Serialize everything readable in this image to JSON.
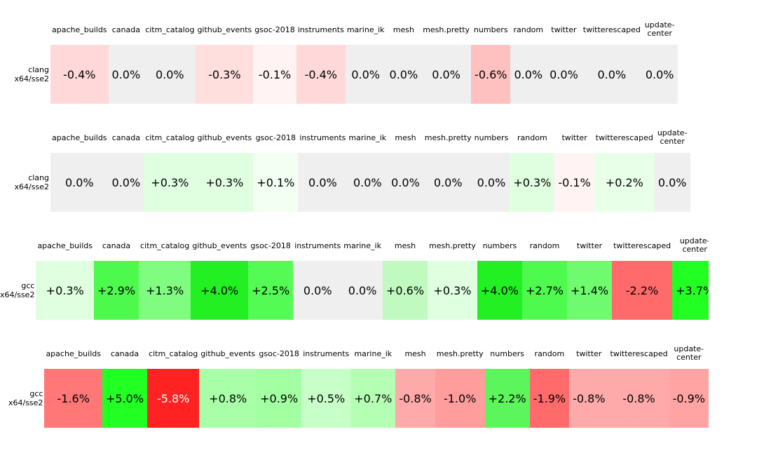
{
  "rows": [
    {
      "label": "clang x64/sse2",
      "columns": [
        "apache_builds",
        "canada",
        "citm_catalog",
        "github_events",
        "gsoc-2018",
        "instruments",
        "marine_ik",
        "mesh",
        "mesh.pretty",
        "numbers",
        "random",
        "twitter",
        "twitterescaped",
        "update-center"
      ],
      "cells": [
        {
          "text": "-0.4%",
          "color": "#ffd9d9"
        },
        {
          "text": "0.0%",
          "color": "#efefef"
        },
        {
          "text": "0.0%",
          "color": "#efefef"
        },
        {
          "text": "-0.3%",
          "color": "#ffdede"
        },
        {
          "text": "-0.1%",
          "color": "#fff3f3"
        },
        {
          "text": "-0.4%",
          "color": "#ffd9d9"
        },
        {
          "text": "0.0%",
          "color": "#efefef"
        },
        {
          "text": "0.0%",
          "color": "#efefef"
        },
        {
          "text": "0.0%",
          "color": "#efefef"
        },
        {
          "text": "-0.6%",
          "color": "#ffc0c0"
        },
        {
          "text": "0.0%",
          "color": "#efefef"
        },
        {
          "text": "0.0%",
          "color": "#efefef"
        },
        {
          "text": "0.0%",
          "color": "#efefef"
        },
        {
          "text": "0.0%",
          "color": "#efefef"
        }
      ]
    },
    {
      "label": "clang x64/sse2",
      "columns": [
        "apache_builds",
        "canada",
        "citm_catalog",
        "github_events",
        "gsoc-2018",
        "instruments",
        "marine_ik",
        "mesh",
        "mesh.pretty",
        "numbers",
        "random",
        "twitter",
        "twitterescaped",
        "update-center"
      ],
      "cells": [
        {
          "text": "0.0%",
          "color": "#efefef"
        },
        {
          "text": "0.0%",
          "color": "#efefef"
        },
        {
          "text": "+0.3%",
          "color": "#e0ffe0"
        },
        {
          "text": "+0.3%",
          "color": "#e0ffe0"
        },
        {
          "text": "+0.1%",
          "color": "#f3fff3"
        },
        {
          "text": "0.0%",
          "color": "#efefef"
        },
        {
          "text": "0.0%",
          "color": "#efefef"
        },
        {
          "text": "0.0%",
          "color": "#efefef"
        },
        {
          "text": "0.0%",
          "color": "#efefef"
        },
        {
          "text": "0.0%",
          "color": "#efefef"
        },
        {
          "text": "+0.3%",
          "color": "#e0ffe0"
        },
        {
          "text": "-0.1%",
          "color": "#fff3f3"
        },
        {
          "text": "+0.2%",
          "color": "#e8ffe8"
        },
        {
          "text": "0.0%",
          "color": "#efefef"
        }
      ]
    },
    {
      "label": "gcc x64/sse2",
      "columns": [
        "apache_builds",
        "canada",
        "citm_catalog",
        "github_events",
        "gsoc-2018",
        "instruments",
        "marine_ik",
        "mesh",
        "mesh.pretty",
        "numbers",
        "random",
        "twitter",
        "twitterescaped",
        "update-center"
      ],
      "cells": [
        {
          "text": "+0.3%",
          "color": "#e0ffe0"
        },
        {
          "text": "+2.9%",
          "color": "#4ef94e"
        },
        {
          "text": "+1.3%",
          "color": "#80fc80"
        },
        {
          "text": "+4.0%",
          "color": "#22f022"
        },
        {
          "text": "+2.5%",
          "color": "#55fb55"
        },
        {
          "text": "0.0%",
          "color": "#efefef"
        },
        {
          "text": "0.0%",
          "color": "#efefef"
        },
        {
          "text": "+0.6%",
          "color": "#c0fac0"
        },
        {
          "text": "+0.3%",
          "color": "#e0ffe0"
        },
        {
          "text": "+4.0%",
          "color": "#22f022"
        },
        {
          "text": "+2.7%",
          "color": "#4dfa4d"
        },
        {
          "text": "+1.4%",
          "color": "#70fa70"
        },
        {
          "text": "-2.2%",
          "color": "#ff6a6a"
        },
        {
          "text": "+3.7%",
          "color": "#22ff22"
        }
      ]
    },
    {
      "label": "gcc x64/sse2",
      "columns": [
        "apache_builds",
        "canada",
        "citm_catalog",
        "github_events",
        "gsoc-2018",
        "instruments",
        "marine_ik",
        "mesh",
        "mesh.pretty",
        "numbers",
        "random",
        "twitter",
        "twitterescaped",
        "update-center"
      ],
      "cells": [
        {
          "text": "-1.6%",
          "color": "#ff7777"
        },
        {
          "text": "+5.0%",
          "color": "#22ff22"
        },
        {
          "text": "-5.8%",
          "color": "#ff2222"
        },
        {
          "text": "+0.8%",
          "color": "#a8ffa8"
        },
        {
          "text": "+0.9%",
          "color": "#a2ffa2"
        },
        {
          "text": "+0.5%",
          "color": "#c8ffc8"
        },
        {
          "text": "+0.7%",
          "color": "#b5ffb5"
        },
        {
          "text": "-0.8%",
          "color": "#ffaaaa"
        },
        {
          "text": "-1.0%",
          "color": "#ff9d9d"
        },
        {
          "text": "+2.2%",
          "color": "#5cf55c"
        },
        {
          "text": "-1.9%",
          "color": "#ff6b6b"
        },
        {
          "text": "-0.8%",
          "color": "#ffaaaa"
        },
        {
          "text": "-0.8%",
          "color": "#ffaaaa"
        },
        {
          "text": "-0.9%",
          "color": "#ffa3a3"
        }
      ]
    }
  ]
}
